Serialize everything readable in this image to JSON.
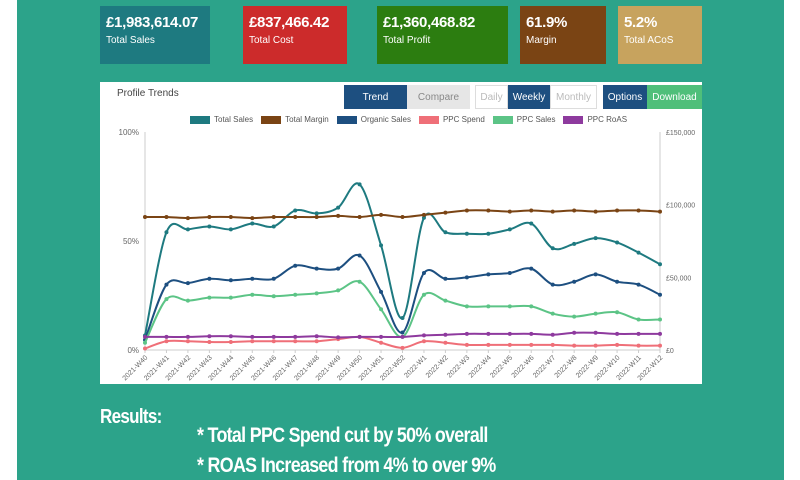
{
  "kpis": [
    {
      "value": "£1,983,614.07",
      "label": "Total Sales",
      "color": "#1e7a80"
    },
    {
      "value": "£837,466.42",
      "label": "Total Cost",
      "color": "#cc2b2b"
    },
    {
      "value": "£1,360,468.82",
      "label": "Total Profit",
      "color": "#2c7d10"
    },
    {
      "value": "61.9%",
      "label": "Margin",
      "color": "#7a4414"
    },
    {
      "value": "5.2%",
      "label": "Total ACoS",
      "color": "#c7a35e"
    }
  ],
  "panel": {
    "title": "Profile Trends",
    "trend": "Trend",
    "compare": "Compare",
    "daily": "Daily",
    "weekly": "Weekly",
    "monthly": "Monthly",
    "options": "Options",
    "download": "Download"
  },
  "results": {
    "heading": "Results:",
    "line1": "* Total PPC Spend cut by 50% overall",
    "line2": "* ROAS Increased from 4% to over 9%"
  },
  "chart_data": {
    "type": "line",
    "categories": [
      "2021-W40",
      "2021-W41",
      "2021-W42",
      "2021-W43",
      "2021-W44",
      "2021-W45",
      "2021-W46",
      "2021-W47",
      "2021-W48",
      "2021-W49",
      "2021-W50",
      "2021-W51",
      "2022-W52",
      "2022-W1",
      "2022-W2",
      "2022-W3",
      "2022-W4",
      "2022-W5",
      "2022-W6",
      "2022-W7",
      "2022-W8",
      "2022-W9",
      "2022-W10",
      "2022-W11",
      "2022-W12"
    ],
    "left_axis": {
      "ticks": [
        "0%",
        "50%",
        "100%"
      ],
      "range": [
        0,
        100
      ]
    },
    "right_axis": {
      "ticks": [
        "£0",
        "£50,000",
        "£100,000",
        "£150,000"
      ],
      "range": [
        0,
        150000
      ]
    },
    "series": [
      {
        "name": "Total Sales",
        "axis": "right",
        "color": "#1e7a80",
        "values": [
          10000,
          81000,
          83000,
          85000,
          83000,
          87000,
          85000,
          96000,
          94000,
          98000,
          114000,
          72000,
          22000,
          91000,
          81000,
          80000,
          80000,
          83000,
          87000,
          70000,
          73000,
          77000,
          74000,
          67000,
          59000
        ]
      },
      {
        "name": "Total Margin",
        "axis": "left",
        "color": "#7a4414",
        "values": [
          61,
          61,
          60.5,
          61,
          61,
          60.5,
          61,
          61,
          61,
          61.5,
          61,
          62,
          61,
          62,
          63,
          64,
          64,
          63.5,
          64,
          63.5,
          64,
          63.5,
          64,
          64,
          63.5
        ]
      },
      {
        "name": "Organic Sales",
        "axis": "right",
        "color": "#1d4f80",
        "values": [
          7000,
          45000,
          46000,
          49000,
          48000,
          49000,
          49000,
          58000,
          56000,
          56000,
          65000,
          40000,
          12000,
          53000,
          49000,
          50000,
          52000,
          53000,
          56000,
          45000,
          47000,
          52000,
          47000,
          45000,
          38000
        ]
      },
      {
        "name": "PPC Spend",
        "axis": "right",
        "color": "#ef6f78",
        "values": [
          1000,
          6000,
          6000,
          5500,
          5500,
          6000,
          6000,
          6000,
          6000,
          7500,
          9000,
          5000,
          1500,
          6000,
          5000,
          3500,
          3500,
          3500,
          3500,
          3500,
          3000,
          3000,
          3500,
          3000,
          3000
        ]
      },
      {
        "name": "PPC Sales",
        "axis": "right",
        "color": "#5cc486",
        "values": [
          5000,
          35000,
          34000,
          36000,
          36000,
          38000,
          37000,
          38000,
          39000,
          41000,
          47000,
          28000,
          9000,
          38000,
          34000,
          30000,
          30000,
          30000,
          30000,
          25000,
          23000,
          25000,
          26000,
          21000,
          21000
        ]
      },
      {
        "name": "PPC RoAS",
        "axis": "left",
        "color": "#8e3a9e",
        "values": [
          6,
          6,
          6,
          6.3,
          6.3,
          6,
          6,
          6,
          6.3,
          5.8,
          6,
          6,
          6,
          6.7,
          7,
          7.4,
          7.4,
          7.4,
          7.4,
          7,
          7.9,
          7.9,
          7.4,
          7.4,
          7.4
        ]
      }
    ]
  }
}
